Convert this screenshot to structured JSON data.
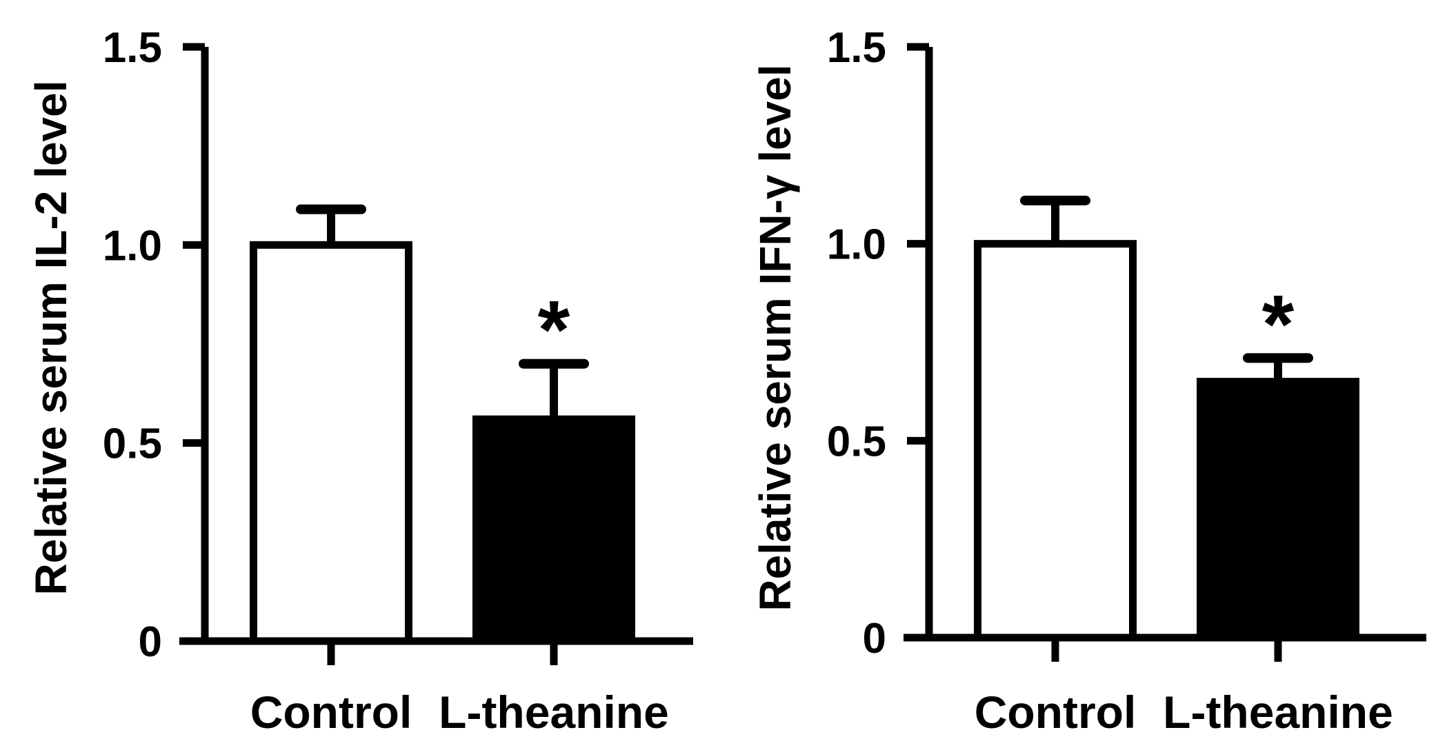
{
  "chart_data": [
    {
      "type": "bar",
      "ylabel": "Relative serum IL-2 level",
      "xlabel": "",
      "categories": [
        "Control",
        "L-theanine"
      ],
      "values": [
        1.0,
        0.56
      ],
      "errors": [
        0.09,
        0.14
      ],
      "ylim": [
        0,
        1.5
      ],
      "yticks": [
        "0",
        "0.5",
        "1.0",
        "1.5"
      ],
      "significance": [
        "",
        "*"
      ],
      "fills": [
        "#ffffff",
        "#000000"
      ]
    },
    {
      "type": "bar",
      "ylabel": "Relative serum IFN-γ level",
      "xlabel": "",
      "categories": [
        "Control",
        "L-theanine"
      ],
      "values": [
        1.0,
        0.65
      ],
      "errors": [
        0.11,
        0.06
      ],
      "ylim": [
        0,
        1.5
      ],
      "yticks": [
        "0",
        "0.5",
        "1.0",
        "1.5"
      ],
      "significance": [
        "",
        "*"
      ],
      "fills": [
        "#ffffff",
        "#000000"
      ]
    }
  ],
  "colors": {
    "axis": "#000000",
    "bar_outline": "#000000",
    "text": "#000000"
  }
}
